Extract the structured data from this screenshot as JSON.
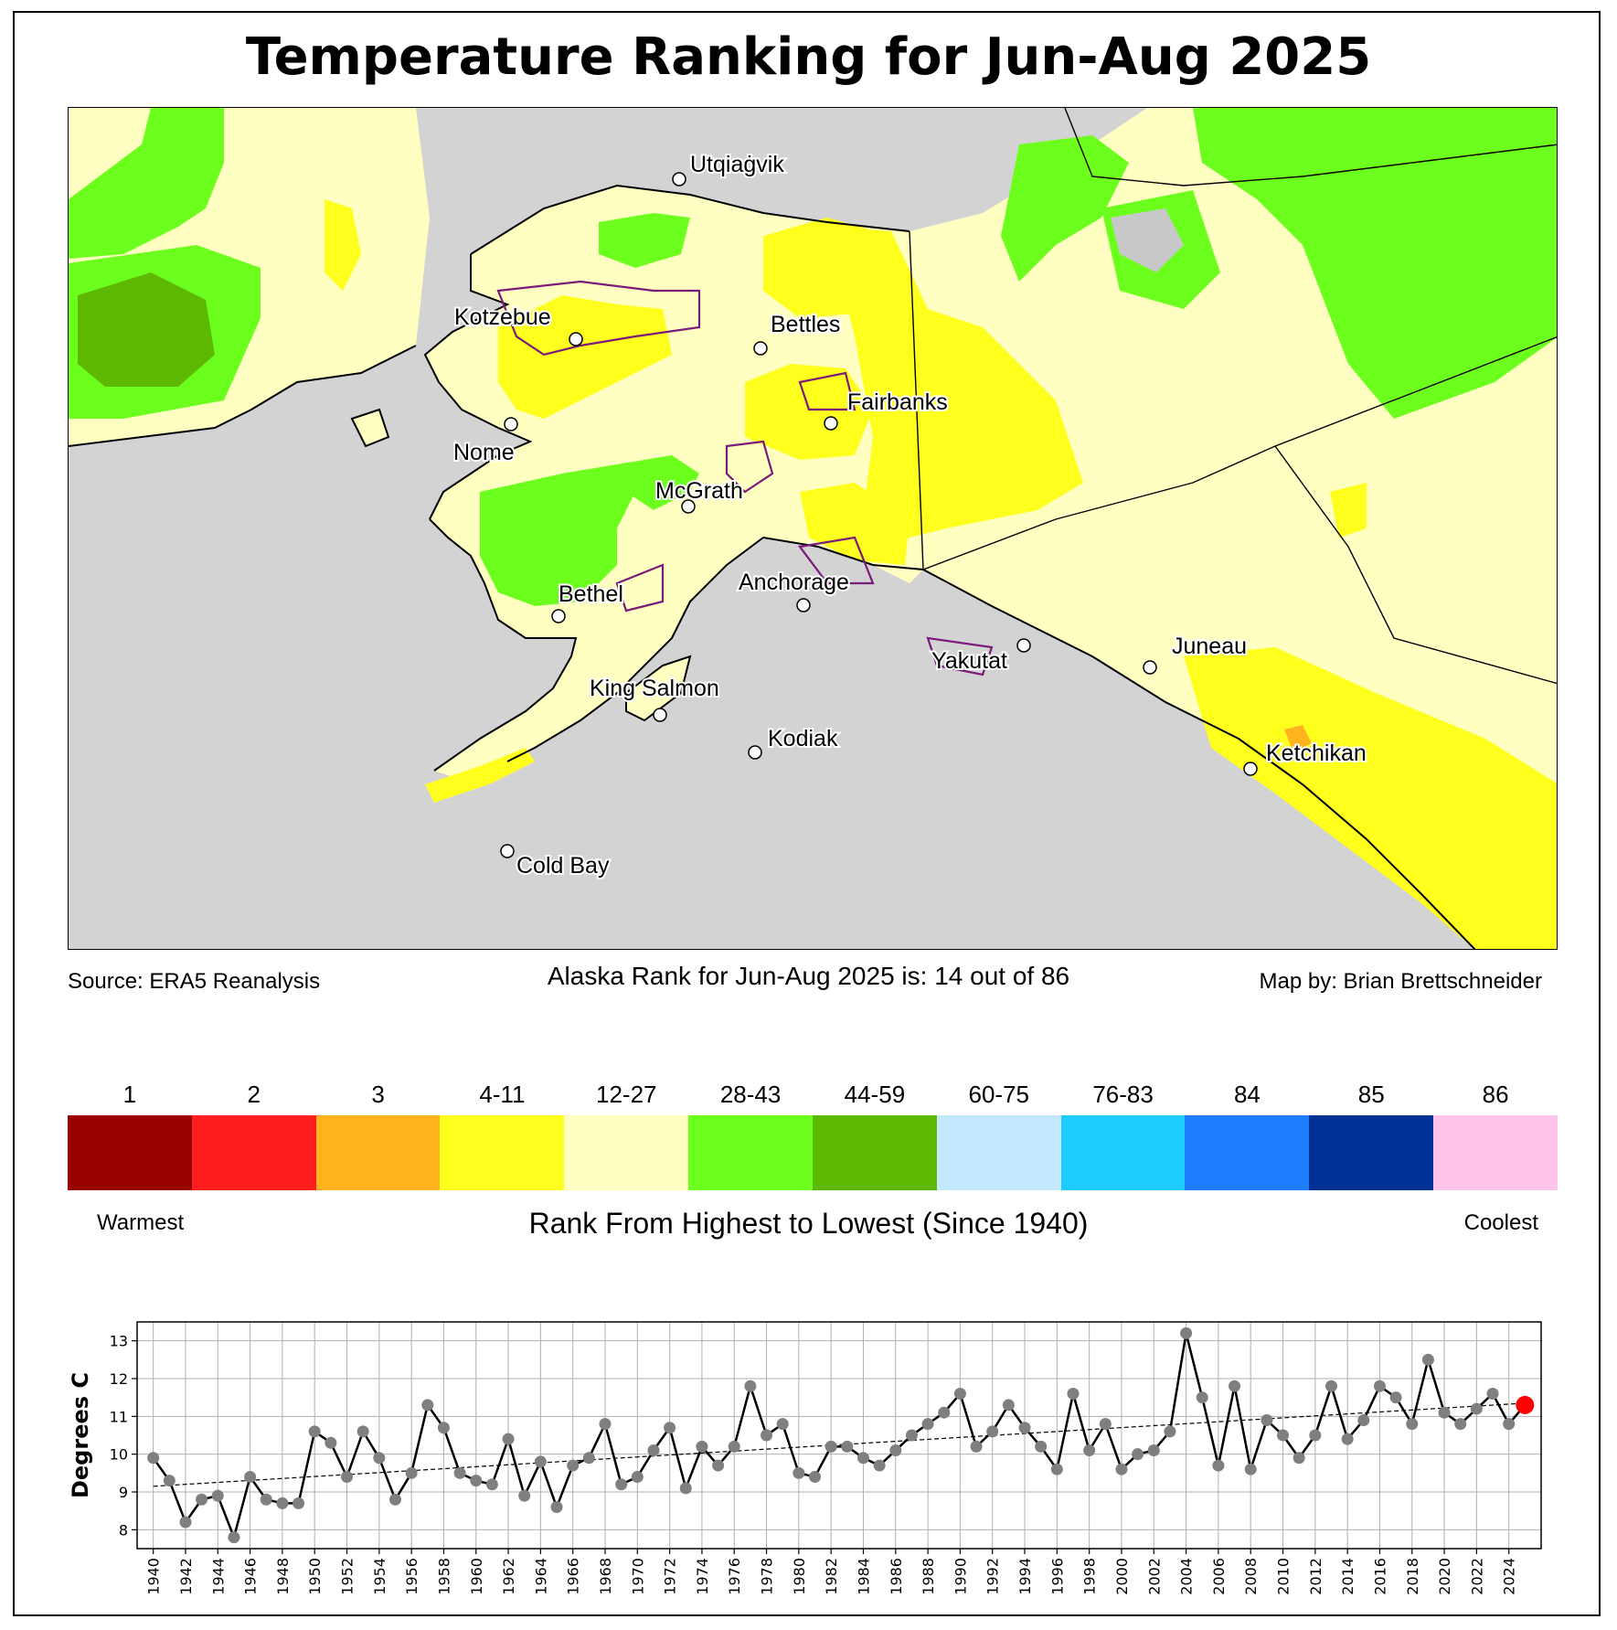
{
  "title": "Temperature Ranking for Jun-Aug 2025",
  "map": {
    "background_color": "#d3d3d3",
    "cities": [
      {
        "name": "Utqiaġvik"
      },
      {
        "name": "Kotzebue"
      },
      {
        "name": "Bettles"
      },
      {
        "name": "Fairbanks"
      },
      {
        "name": "Nome"
      },
      {
        "name": "McGrath"
      },
      {
        "name": "Bethel"
      },
      {
        "name": "Anchorage"
      },
      {
        "name": "Yakutat"
      },
      {
        "name": "Juneau"
      },
      {
        "name": "King Salmon"
      },
      {
        "name": "Kodiak"
      },
      {
        "name": "Ketchikan"
      },
      {
        "name": "Cold Bay"
      }
    ]
  },
  "footer": {
    "source": "Source: ERA5 Reanalysis",
    "rank_text": "Alaska Rank for Jun-Aug 2025 is: 14 out of 86",
    "credit": "Map by: Brian Brettschneider"
  },
  "legend": {
    "items": [
      {
        "label": "1",
        "color": "#990000"
      },
      {
        "label": "2",
        "color": "#ff1e1e"
      },
      {
        "label": "3",
        "color": "#feb31f"
      },
      {
        "label": "4-11",
        "color": "#ffff1e"
      },
      {
        "label": "12-27",
        "color": "#ffffc2"
      },
      {
        "label": "28-43",
        "color": "#6cff1e"
      },
      {
        "label": "44-59",
        "color": "#5cb800"
      },
      {
        "label": "60-75",
        "color": "#c4e9ff"
      },
      {
        "label": "76-83",
        "color": "#1ecbff"
      },
      {
        "label": "84",
        "color": "#1e7eff"
      },
      {
        "label": "85",
        "color": "#003296"
      },
      {
        "label": "86",
        "color": "#ffc4e9"
      }
    ],
    "warmest": "Warmest",
    "coolest": "Coolest",
    "caption": "Rank From Highest to Lowest (Since 1940)"
  },
  "chart_data": {
    "type": "line",
    "ylabel": "Degrees C",
    "xlabel": "",
    "x": [
      1940,
      1941,
      1942,
      1943,
      1944,
      1945,
      1946,
      1947,
      1948,
      1949,
      1950,
      1951,
      1952,
      1953,
      1954,
      1955,
      1956,
      1957,
      1958,
      1959,
      1960,
      1961,
      1962,
      1963,
      1964,
      1965,
      1966,
      1967,
      1968,
      1969,
      1970,
      1971,
      1972,
      1973,
      1974,
      1975,
      1976,
      1977,
      1978,
      1979,
      1980,
      1981,
      1982,
      1983,
      1984,
      1985,
      1986,
      1987,
      1988,
      1989,
      1990,
      1991,
      1992,
      1993,
      1994,
      1995,
      1996,
      1997,
      1998,
      1999,
      2000,
      2001,
      2002,
      2003,
      2004,
      2005,
      2006,
      2007,
      2008,
      2009,
      2010,
      2011,
      2012,
      2013,
      2014,
      2015,
      2016,
      2017,
      2018,
      2019,
      2020,
      2021,
      2022,
      2023,
      2024,
      2025
    ],
    "values": [
      9.9,
      9.3,
      8.2,
      8.8,
      8.9,
      7.8,
      9.4,
      8.8,
      8.7,
      8.7,
      10.6,
      10.3,
      9.4,
      10.6,
      9.9,
      8.8,
      9.5,
      11.3,
      10.7,
      9.5,
      9.3,
      9.2,
      10.4,
      8.9,
      9.8,
      8.6,
      9.7,
      9.9,
      10.8,
      9.2,
      9.4,
      10.1,
      10.7,
      9.1,
      10.2,
      9.7,
      10.2,
      11.8,
      10.5,
      10.8,
      9.5,
      9.4,
      10.2,
      10.2,
      9.9,
      9.7,
      10.1,
      10.5,
      10.8,
      11.1,
      11.6,
      10.2,
      10.6,
      11.3,
      10.7,
      10.2,
      9.6,
      11.6,
      10.1,
      10.8,
      9.6,
      10.0,
      10.1,
      10.6,
      13.2,
      11.5,
      9.7,
      11.8,
      9.6,
      10.9,
      10.5,
      9.9,
      10.5,
      11.8,
      10.4,
      10.9,
      11.8,
      11.5,
      10.8,
      12.5,
      11.1,
      10.8,
      11.2,
      11.6,
      10.8,
      11.3
    ],
    "trend": {
      "start": 9.15,
      "end": 11.35
    },
    "highlight_year": 2025,
    "highlight_color": "#ff0000",
    "point_color": "#7f7f7f",
    "line_color": "#000000",
    "ylim": [
      7.5,
      13.5
    ],
    "yticks": [
      8,
      9,
      10,
      11,
      12,
      13
    ],
    "xtick_step": 2,
    "grid": true
  }
}
